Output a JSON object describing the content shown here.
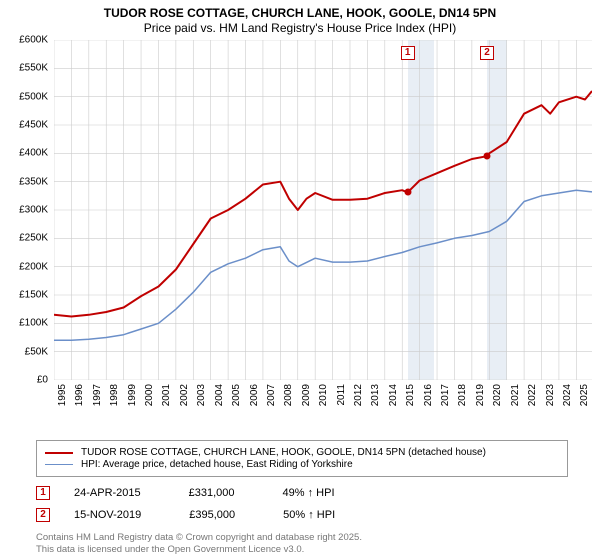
{
  "title": {
    "line1": "TUDOR ROSE COTTAGE, CHURCH LANE, HOOK, GOOLE, DN14 5PN",
    "line2": "Price paid vs. HM Land Registry's House Price Index (HPI)",
    "fontsize": 12,
    "color": "#000000"
  },
  "chart": {
    "type": "line",
    "background_color": "#ffffff",
    "grid_color": "#cccccc",
    "shade_color": "#e8eef5",
    "x": {
      "min": 1995,
      "max": 2025.9,
      "ticks": [
        1995,
        1996,
        1997,
        1998,
        1999,
        2000,
        2001,
        2002,
        2003,
        2004,
        2005,
        2006,
        2007,
        2008,
        2009,
        2010,
        2011,
        2012,
        2013,
        2014,
        2015,
        2016,
        2017,
        2018,
        2019,
        2020,
        2021,
        2022,
        2023,
        2024,
        2025
      ],
      "label_fontsize": 10
    },
    "y": {
      "min": 0,
      "max": 600000,
      "ticks": [
        0,
        50000,
        100000,
        150000,
        200000,
        250000,
        300000,
        350000,
        400000,
        450000,
        500000,
        550000,
        600000
      ],
      "tick_labels": [
        "£0",
        "£50K",
        "£100K",
        "£150K",
        "£200K",
        "£250K",
        "£300K",
        "£350K",
        "£400K",
        "£450K",
        "£500K",
        "£550K",
        "£600K"
      ],
      "label_fontsize": 10
    },
    "shaded_ranges": [
      {
        "from": 2015.31,
        "to": 2016.8
      },
      {
        "from": 2019.87,
        "to": 2021.0
      }
    ],
    "series": [
      {
        "id": "property",
        "label": "TUDOR ROSE COTTAGE, CHURCH LANE, HOOK, GOOLE, DN14 5PN (detached house)",
        "color": "#c00000",
        "line_width": 2,
        "points": [
          [
            1995,
            115000
          ],
          [
            1996,
            112000
          ],
          [
            1997,
            115000
          ],
          [
            1998,
            120000
          ],
          [
            1999,
            128000
          ],
          [
            2000,
            148000
          ],
          [
            2001,
            165000
          ],
          [
            2002,
            195000
          ],
          [
            2003,
            240000
          ],
          [
            2004,
            285000
          ],
          [
            2005,
            300000
          ],
          [
            2006,
            320000
          ],
          [
            2007,
            345000
          ],
          [
            2008,
            350000
          ],
          [
            2008.5,
            320000
          ],
          [
            2009,
            300000
          ],
          [
            2009.5,
            320000
          ],
          [
            2010,
            330000
          ],
          [
            2011,
            318000
          ],
          [
            2012,
            318000
          ],
          [
            2013,
            320000
          ],
          [
            2014,
            330000
          ],
          [
            2015,
            335000
          ],
          [
            2015.31,
            331000
          ],
          [
            2016,
            352000
          ],
          [
            2017,
            365000
          ],
          [
            2018,
            378000
          ],
          [
            2019,
            390000
          ],
          [
            2019.87,
            395000
          ],
          [
            2020,
            400000
          ],
          [
            2021,
            420000
          ],
          [
            2022,
            470000
          ],
          [
            2023,
            485000
          ],
          [
            2023.5,
            470000
          ],
          [
            2024,
            490000
          ],
          [
            2025,
            500000
          ],
          [
            2025.5,
            495000
          ],
          [
            2025.9,
            510000
          ]
        ]
      },
      {
        "id": "hpi",
        "label": "HPI: Average price, detached house, East Riding of Yorkshire",
        "color": "#6b8fc9",
        "line_width": 1.5,
        "points": [
          [
            1995,
            70000
          ],
          [
            1996,
            70000
          ],
          [
            1997,
            72000
          ],
          [
            1998,
            75000
          ],
          [
            1999,
            80000
          ],
          [
            2000,
            90000
          ],
          [
            2001,
            100000
          ],
          [
            2002,
            125000
          ],
          [
            2003,
            155000
          ],
          [
            2004,
            190000
          ],
          [
            2005,
            205000
          ],
          [
            2006,
            215000
          ],
          [
            2007,
            230000
          ],
          [
            2008,
            235000
          ],
          [
            2008.5,
            210000
          ],
          [
            2009,
            200000
          ],
          [
            2010,
            215000
          ],
          [
            2011,
            208000
          ],
          [
            2012,
            208000
          ],
          [
            2013,
            210000
          ],
          [
            2014,
            218000
          ],
          [
            2015,
            225000
          ],
          [
            2016,
            235000
          ],
          [
            2017,
            242000
          ],
          [
            2018,
            250000
          ],
          [
            2019,
            255000
          ],
          [
            2020,
            262000
          ],
          [
            2021,
            280000
          ],
          [
            2022,
            315000
          ],
          [
            2023,
            325000
          ],
          [
            2024,
            330000
          ],
          [
            2025,
            335000
          ],
          [
            2025.9,
            332000
          ]
        ]
      }
    ],
    "sale_markers": [
      {
        "n": "1",
        "x": 2015.31,
        "y": 331000,
        "box_y": 40000
      },
      {
        "n": "2",
        "x": 2019.87,
        "y": 395000,
        "box_y": 40000
      }
    ]
  },
  "legend": {
    "border_color": "#999999",
    "fontsize": 10,
    "items": [
      {
        "color": "#c00000",
        "width": 2,
        "text": "TUDOR ROSE COTTAGE, CHURCH LANE, HOOK, GOOLE, DN14 5PN (detached house)"
      },
      {
        "color": "#6b8fc9",
        "width": 1.5,
        "text": "HPI: Average price, detached house, East Riding of Yorkshire"
      }
    ]
  },
  "annotations": [
    {
      "n": "1",
      "date": "24-APR-2015",
      "price": "£331,000",
      "delta": "49% ↑ HPI"
    },
    {
      "n": "2",
      "date": "15-NOV-2019",
      "price": "£395,000",
      "delta": "50% ↑ HPI"
    }
  ],
  "footer": {
    "line1": "Contains HM Land Registry data © Crown copyright and database right 2025.",
    "line2": "This data is licensed under the Open Government Licence v3.0.",
    "color": "#777777",
    "fontsize": 9.5
  }
}
